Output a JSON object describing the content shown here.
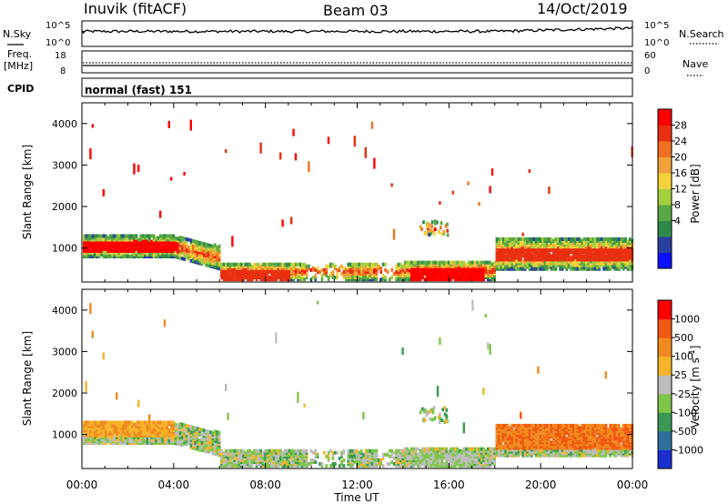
{
  "header": {
    "station": "Inuvik (fitACF)",
    "beam": "Beam 03",
    "date": "14/Oct/2019"
  },
  "top_panels": {
    "nsky_label": "N.Sky",
    "nsearch_label": "N.Search",
    "nsky_ticks": [
      "10^5",
      "10^0"
    ],
    "nsearch_ticks": [
      "10^5",
      "10^0"
    ],
    "freq_label_1": "Freq.",
    "freq_label_2": "[MHz]",
    "freq_ticks": [
      "18",
      "8"
    ],
    "nave_label": "Nave",
    "nave_ticks": [
      "60",
      "0"
    ],
    "cpid_label": "CPID",
    "cpid_text": "normal (fast) 151"
  },
  "colorbars": {
    "power": {
      "label": "Power [dB]",
      "ticks": [
        "28",
        "24",
        "20",
        "16",
        "12",
        "8",
        "4"
      ]
    },
    "velocity": {
      "label": "Velocity [m s^-1]",
      "ticks": [
        "1000",
        "500",
        "100",
        "25",
        "-25",
        "-100",
        "-500",
        "-1000"
      ]
    }
  },
  "colors": {
    "power_scale": [
      "#0a10ff",
      "#2a3fa0",
      "#2f8a4a",
      "#5aa845",
      "#a6cf40",
      "#f3d23a",
      "#f0a23a",
      "#f07020",
      "#e83010",
      "#ff0000"
    ],
    "velocity_scale": [
      "#1a2fd0",
      "#2d6f9a",
      "#3a9a55",
      "#7ec64a",
      "#bdbdbd",
      "#f5b42a",
      "#f08a20",
      "#f05a10",
      "#ff0000"
    ]
  },
  "chart_data": [
    {
      "type": "heatmap",
      "name": "power",
      "ylabel": "Slant Range [km]",
      "x_ticks": [
        "00:00",
        "04:00",
        "08:00",
        "12:00",
        "16:00",
        "20:00",
        "00:00"
      ],
      "y_ticks": [
        "4000",
        "3000",
        "2000",
        "1000"
      ],
      "xlim_hours": [
        0,
        24
      ],
      "ylim_km": [
        180,
        4500
      ],
      "xlabel": "Time UT"
    },
    {
      "type": "heatmap",
      "name": "velocity",
      "ylabel": "Slant Range [km]",
      "x_ticks": [
        "00:00",
        "04:00",
        "08:00",
        "12:00",
        "16:00",
        "20:00",
        "00:00"
      ],
      "y_ticks": [
        "4000",
        "3000",
        "2000",
        "1000"
      ],
      "xlim_hours": [
        0,
        24
      ],
      "ylim_km": [
        180,
        4500
      ],
      "xlabel": "Time UT"
    }
  ]
}
